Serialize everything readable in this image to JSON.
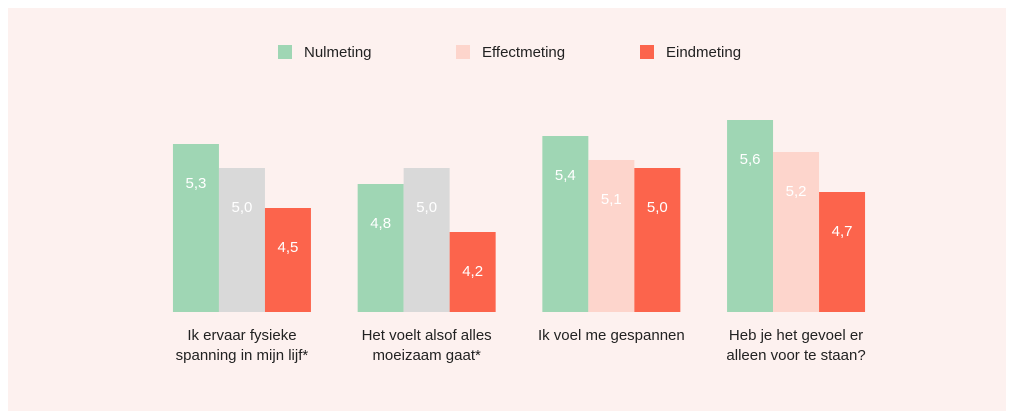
{
  "chart_data": {
    "type": "bar",
    "categories": [
      "Ik ervaar fysieke spanning in mijn lijf*",
      "Het voelt alsof alles moeizaam gaat*",
      "Ik voel me gespannen",
      "Heb je het gevoel er alleen voor te staan?"
    ],
    "series": [
      {
        "name": "Nulmeting",
        "color": "#9fd6b4",
        "values": [
          5.3,
          4.8,
          5.4,
          5.6
        ],
        "value_labels": [
          "5,3",
          "4,8",
          "5,4",
          "5,6"
        ]
      },
      {
        "name": "Effectmeting",
        "color": "#fdd5cc",
        "colors": [
          "#d9d9d9",
          "#d9d9d9",
          "#fdd5cc",
          "#fdd5cc"
        ],
        "values": [
          5.0,
          5.0,
          5.1,
          5.2
        ],
        "value_labels": [
          "5,0",
          "5,0",
          "5,1",
          "5,2"
        ]
      },
      {
        "name": "Eindmeting",
        "color": "#fc644c",
        "values": [
          4.5,
          4.2,
          5.0,
          4.7
        ],
        "value_labels": [
          "4,5",
          "4,2",
          "5,0",
          "4,7"
        ]
      }
    ],
    "ylim": [
      3.2,
      6.0
    ],
    "legend": "top"
  }
}
